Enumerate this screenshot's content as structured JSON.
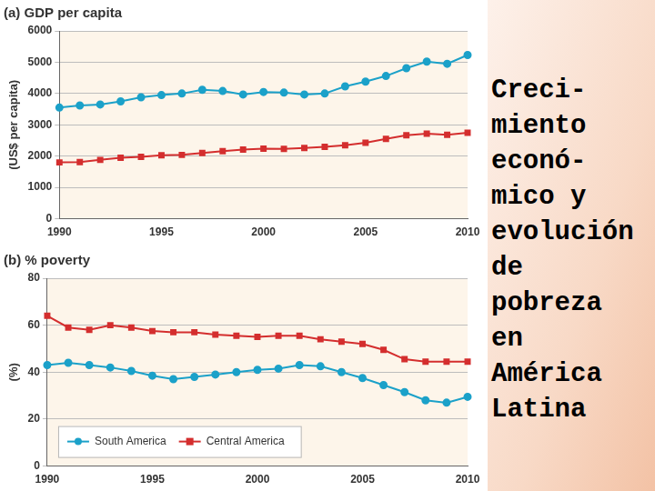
{
  "chart_data": [
    {
      "type": "line",
      "title": "(a) GDP per capita",
      "y_label": "(US$ per capita)",
      "x": [
        1990,
        1991,
        1992,
        1993,
        1994,
        1995,
        1996,
        1997,
        1998,
        1999,
        2000,
        2001,
        2002,
        2003,
        2004,
        2005,
        2006,
        2007,
        2008,
        2009,
        2010
      ],
      "series": [
        {
          "name": "South America",
          "color": "#1ba1c9",
          "marker": "circle",
          "line_style": "solid",
          "values": [
            3550,
            3620,
            3650,
            3750,
            3880,
            3950,
            4000,
            4120,
            4080,
            3970,
            4050,
            4030,
            3970,
            4000,
            4230,
            4380,
            4560,
            4810,
            5020,
            4950,
            5230
          ]
        },
        {
          "name": "Central America",
          "color": "#d42e2e",
          "marker": "square",
          "line_style": "solid",
          "values": [
            1800,
            1810,
            1880,
            1950,
            1980,
            2030,
            2040,
            2100,
            2160,
            2210,
            2240,
            2230,
            2260,
            2300,
            2350,
            2430,
            2550,
            2670,
            2720,
            2680,
            2750
          ]
        }
      ],
      "xlim": [
        1990,
        2010
      ],
      "xticks": [
        1990,
        1995,
        2000,
        2005,
        2010
      ],
      "ylim": [
        0,
        6000
      ],
      "yticks": [
        0,
        1000,
        2000,
        3000,
        4000,
        5000,
        6000
      ],
      "grid": true
    },
    {
      "type": "line",
      "title": "(b) % poverty",
      "y_label": "(%)",
      "x": [
        1990,
        1991,
        1992,
        1993,
        1994,
        1995,
        1996,
        1997,
        1998,
        1999,
        2000,
        2001,
        2002,
        2003,
        2004,
        2005,
        2006,
        2007,
        2008,
        2009,
        2010
      ],
      "series": [
        {
          "name": "South America",
          "color": "#1ba1c9",
          "marker": "circle",
          "line_style": "solid",
          "values": [
            43,
            44,
            43,
            42,
            40.5,
            38.5,
            37,
            38,
            39,
            40,
            41,
            41.5,
            43,
            42.5,
            40,
            37.5,
            34.5,
            31.5,
            28,
            27,
            29.5
          ]
        },
        {
          "name": "Central America",
          "color": "#d42e2e",
          "marker": "square",
          "line_style": "solid",
          "values": [
            64,
            59,
            58,
            60,
            59,
            57.5,
            57,
            57,
            56,
            55.5,
            55,
            55.5,
            55.5,
            54,
            53,
            52,
            49.5,
            45.5,
            44.5,
            44.5,
            44.5
          ]
        }
      ],
      "xlim": [
        1990,
        2010
      ],
      "xticks": [
        1990,
        1995,
        2000,
        2005,
        2010
      ],
      "ylim": [
        0,
        80
      ],
      "yticks": [
        0,
        20,
        40,
        60,
        80
      ],
      "grid": true,
      "legend": "lower left"
    }
  ],
  "side_text": [
    "Creci-",
    "miento",
    "econó-",
    "mico y",
    "evolución",
    "de",
    "pobreza",
    "en",
    "América",
    "Latina"
  ]
}
